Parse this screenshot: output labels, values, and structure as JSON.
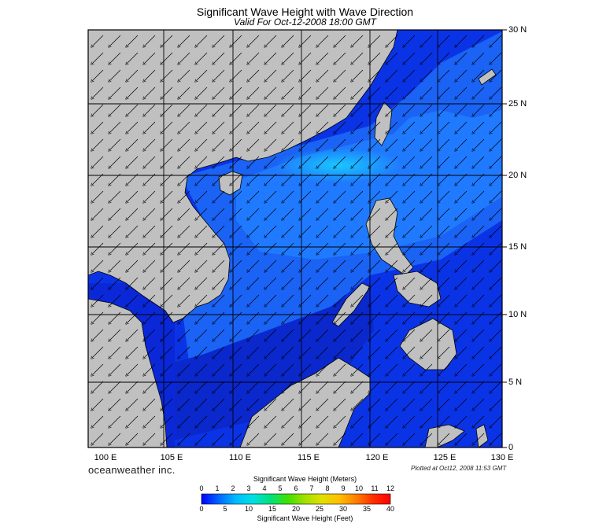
{
  "header": {
    "title": "Significant Wave Height with Wave Direction",
    "subtitle": "Valid For Oct-12-2008 18:00 GMT"
  },
  "map": {
    "lon_range": [
      99,
      130
    ],
    "lat_range": [
      0,
      30
    ],
    "lat_labels": [
      "30 N",
      "25 N",
      "20 N",
      "15 N",
      "10 N",
      "5 N",
      "0"
    ],
    "lon_labels": [
      "100 E",
      "105 E",
      "110 E",
      "115 E",
      "120 E",
      "125 E",
      "130 E"
    ],
    "land_color": "#c0c0c0",
    "wave_direction": "towards southwest"
  },
  "footer": {
    "brand": "oceanweather inc.",
    "plotted": "Plotted at Oct12, 2008 11:53 GMT"
  },
  "colorbar": {
    "title_meters": "Significant Wave Height (Meters)",
    "title_feet": "Significant Wave Height (Feet)",
    "meter_ticks": [
      "0",
      "1",
      "2",
      "3",
      "4",
      "5",
      "6",
      "7",
      "8",
      "9",
      "10",
      "11",
      "12"
    ],
    "feet_ticks": [
      "0",
      "5",
      "10",
      "15",
      "20",
      "25",
      "30",
      "35",
      "40"
    ],
    "colors": [
      "#0000ff",
      "#0066ff",
      "#00bbff",
      "#00e0e0",
      "#00e080",
      "#40e000",
      "#a0e000",
      "#e0e000",
      "#ffc000",
      "#ff8000",
      "#ff3000",
      "#ff0000"
    ]
  }
}
